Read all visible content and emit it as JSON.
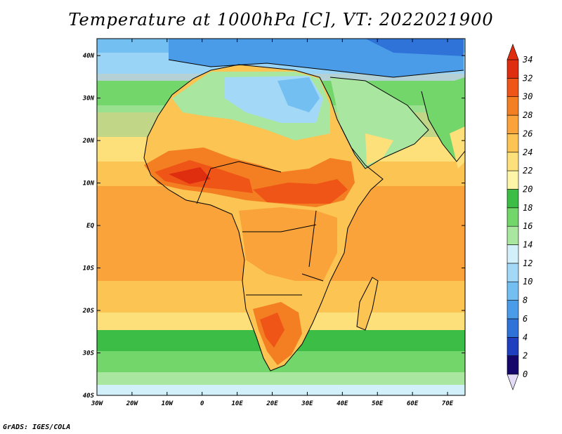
{
  "title": "Temperature at 1000hPa [C], VT: 2022021900",
  "credit": "GrADS: IGES/COLA",
  "map": {
    "projection": "lat-lon",
    "lon_range": [
      -30,
      75
    ],
    "lat_range": [
      -40,
      44
    ],
    "lon_ticks": [
      "30W",
      "20W",
      "10W",
      "0",
      "10E",
      "20E",
      "30E",
      "40E",
      "50E",
      "60E",
      "70E"
    ],
    "lat_ticks": [
      "40N",
      "30N",
      "20N",
      "10N",
      "EQ",
      "10S",
      "20S",
      "30S",
      "40S"
    ]
  },
  "colorbar": {
    "orientation": "vertical",
    "placement": "right",
    "levels": [
      "0",
      "2",
      "4",
      "6",
      "8",
      "10",
      "12",
      "14",
      "16",
      "18",
      "20",
      "22",
      "24",
      "26",
      "28",
      "30",
      "32",
      "34"
    ],
    "colors": [
      "#15066b",
      "#1f3fbf",
      "#2f73d9",
      "#4b9ce8",
      "#73bff2",
      "#a3d9f7",
      "#d2f0fa",
      "#a9e6a0",
      "#72d66a",
      "#3bbd46",
      "#fff5a8",
      "#fde07a",
      "#fbc453",
      "#f9a33a",
      "#f47f22",
      "#ee5517",
      "#df2d10"
    ]
  }
}
